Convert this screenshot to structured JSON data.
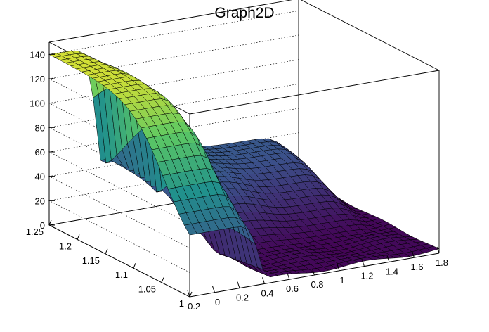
{
  "chart_data": {
    "type": "surface",
    "title": "Graph2D",
    "xlabel": "",
    "ylabel": "",
    "zlabel": "",
    "xlim": [
      -0.2,
      1.8
    ],
    "ylim": [
      1.0,
      1.25
    ],
    "zlim": [
      0,
      150
    ],
    "x_ticks": [
      "-0.2",
      "0",
      "0.2",
      "0.4",
      "0.6",
      "0.8",
      "1",
      "1.2",
      "1.4",
      "1.6",
      "1.8"
    ],
    "y_ticks": [
      "1",
      "1.05",
      "1.1",
      "1.15",
      "1.2",
      "1.25"
    ],
    "z_ticks": [
      "0",
      "20",
      "40",
      "60",
      "80",
      "100",
      "120",
      "140"
    ],
    "colormap": "viridis",
    "grid": true,
    "description_points": [
      {
        "x": -0.2,
        "y": 1.25,
        "z": 140
      },
      {
        "x": 0.0,
        "y": 1.25,
        "z": 138
      },
      {
        "x": 0.2,
        "y": 1.2,
        "z": 120
      },
      {
        "x": 0.4,
        "y": 1.1,
        "z": 65
      },
      {
        "x": 0.5,
        "y": 1.0,
        "z": 5
      },
      {
        "x": 1.0,
        "y": 1.2,
        "z": 47
      },
      {
        "x": 1.6,
        "y": 1.15,
        "z": 42
      },
      {
        "x": 1.8,
        "y": 1.05,
        "z": 10
      },
      {
        "x": 1.0,
        "y": 1.0,
        "z": 3
      }
    ]
  }
}
